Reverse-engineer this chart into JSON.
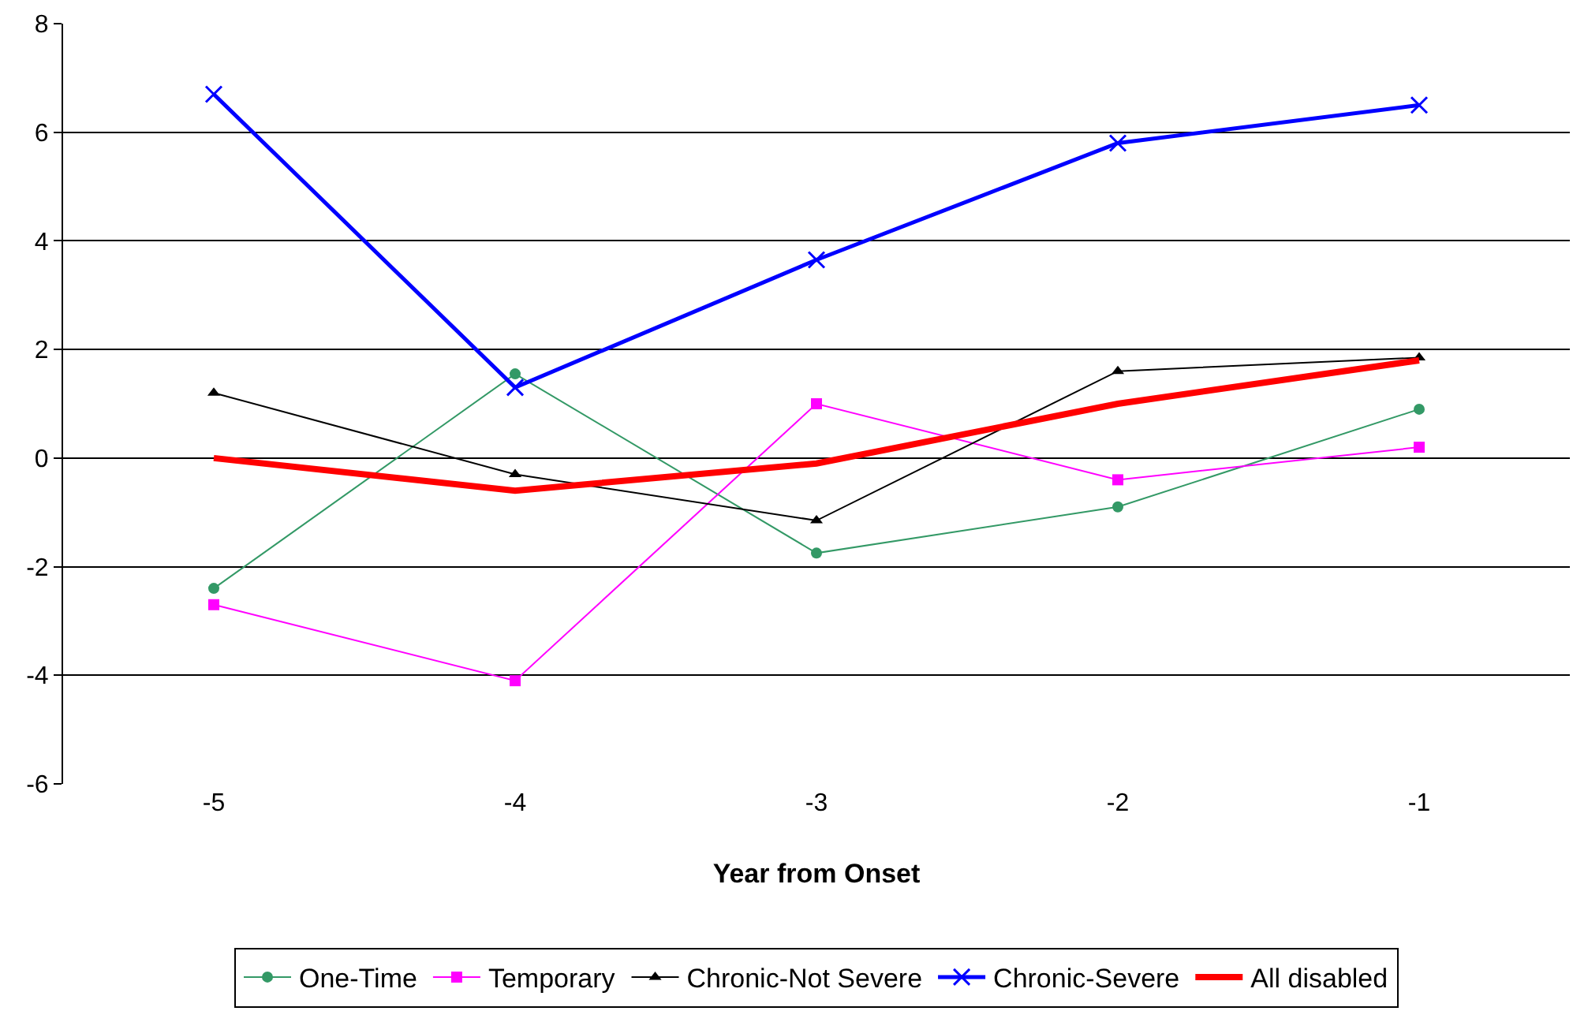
{
  "chart_data": {
    "type": "line",
    "xlabel": "Year from Onset",
    "categories": [
      "-5",
      "-4",
      "-3",
      "-2",
      "-1"
    ],
    "series": [
      {
        "name": "One-Time",
        "color": "#339966",
        "marker": "circle",
        "values": [
          -2.4,
          1.55,
          -1.75,
          -0.9,
          0.9
        ]
      },
      {
        "name": "Temporary",
        "color": "#ff00ff",
        "marker": "square",
        "values": [
          -2.7,
          -4.1,
          1.0,
          -0.4,
          0.2
        ]
      },
      {
        "name": "Chronic-Not Severe",
        "color": "#000000",
        "marker": "triangle",
        "values": [
          1.2,
          -0.3,
          -1.15,
          1.6,
          1.85
        ]
      },
      {
        "name": "Chronic-Severe",
        "color": "#0000ff",
        "marker": "cross",
        "values": [
          6.7,
          1.3,
          3.65,
          5.8,
          6.5
        ]
      },
      {
        "name": "All disabled",
        "color": "#ff0000",
        "marker": "none",
        "values": [
          0,
          -0.6,
          -0.1,
          1.0,
          1.8
        ]
      }
    ],
    "ylim": [
      -6,
      8
    ],
    "yticks": [
      -6,
      -4,
      -2,
      0,
      2,
      4,
      6,
      8
    ],
    "grid": "y",
    "legend": "bottom"
  }
}
